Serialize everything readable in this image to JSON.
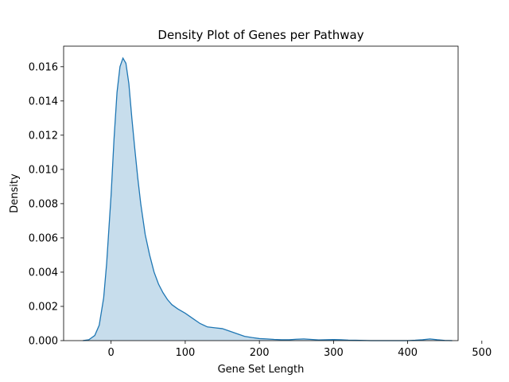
{
  "chart_data": {
    "type": "area",
    "title": "Density Plot of Genes per Pathway",
    "xlabel": "Gene Set Length",
    "ylabel": "Density",
    "xlim": [
      -64,
      468
    ],
    "ylim": [
      0,
      0.0172
    ],
    "x_ticks": [
      0,
      100,
      200,
      300,
      400,
      500
    ],
    "x_tick_labels": [
      "0",
      "100",
      "200",
      "300",
      "400",
      "500"
    ],
    "y_ticks": [
      0,
      0.002,
      0.004,
      0.006,
      0.008,
      0.01,
      0.012,
      0.014,
      0.016
    ],
    "y_tick_labels": [
      "0.000",
      "0.002",
      "0.004",
      "0.006",
      "0.008",
      "0.010",
      "0.012",
      "0.014",
      "0.016"
    ],
    "grid": false,
    "line_color": "#1f77b4",
    "fill_color": "#1f77b4",
    "fill_opacity": 0.25,
    "series": [
      {
        "x": [
          -38,
          -30,
          -22,
          -16,
          -10,
          -6,
          -3,
          0,
          4,
          8,
          12,
          16,
          20,
          24,
          28,
          32,
          36,
          40,
          46,
          52,
          58,
          64,
          70,
          76,
          82,
          90,
          100,
          110,
          120,
          130,
          140,
          150,
          160,
          170,
          180,
          190,
          200,
          210,
          220,
          230,
          240,
          250,
          260,
          270,
          280,
          290,
          300,
          310,
          320,
          330,
          340,
          350,
          360,
          380,
          400,
          410,
          420,
          430,
          440,
          450,
          460
        ],
        "y": [
          0.0,
          5e-05,
          0.0003,
          0.0009,
          0.0025,
          0.0045,
          0.0065,
          0.0085,
          0.0118,
          0.0145,
          0.016,
          0.0165,
          0.0162,
          0.015,
          0.013,
          0.0112,
          0.0095,
          0.008,
          0.0062,
          0.005,
          0.004,
          0.0033,
          0.0028,
          0.0024,
          0.0021,
          0.00185,
          0.0016,
          0.0013,
          0.001,
          0.0008,
          0.00075,
          0.0007,
          0.00055,
          0.0004,
          0.00025,
          0.00018,
          0.00012,
          0.0001,
          7e-05,
          5e-05,
          5e-05,
          8e-05,
          0.0001,
          7e-05,
          4e-05,
          5e-05,
          6e-05,
          5e-05,
          3e-05,
          2e-05,
          1e-05,
          0.0,
          0.0,
          0.0,
          0.0,
          2e-05,
          5e-05,
          0.0001,
          5e-05,
          1e-05,
          0.0
        ]
      }
    ]
  }
}
